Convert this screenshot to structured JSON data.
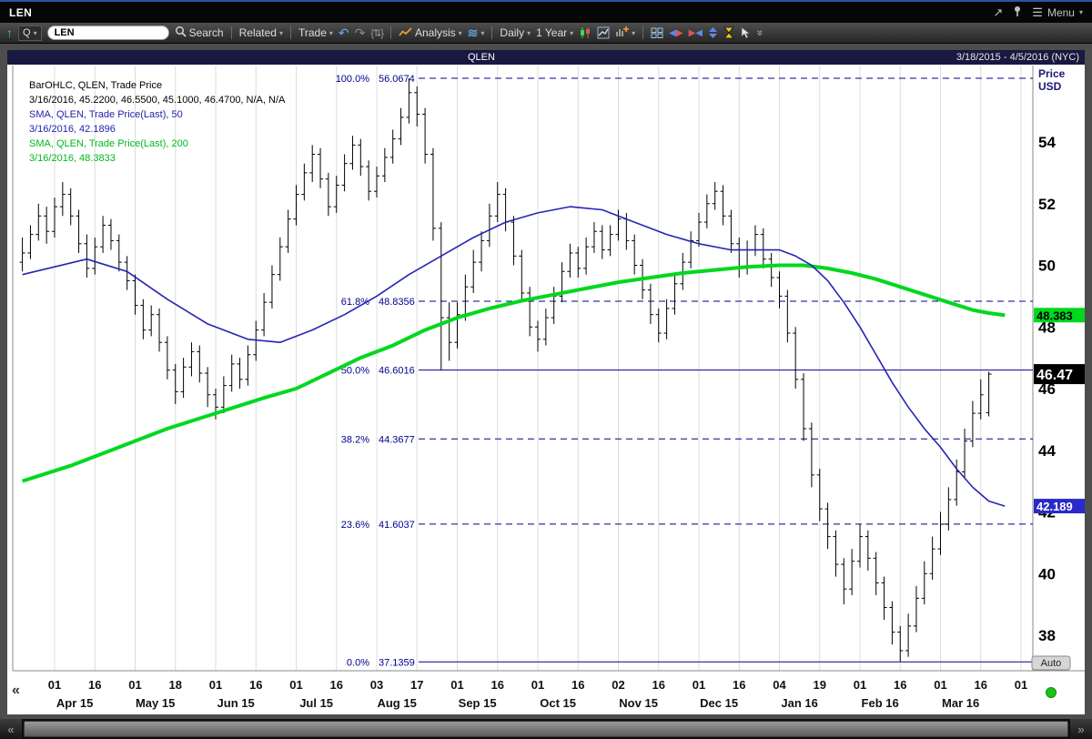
{
  "titlebar": {
    "title": "LEN",
    "menu_label": "Menu"
  },
  "toolbar": {
    "symbol_prefix": "Q",
    "symbol_value": "LEN",
    "search_label": "Search",
    "related_label": "Related",
    "trade_label": "Trade",
    "analysis_label": "Analysis",
    "period_label": "Daily",
    "range_label": "1 Year"
  },
  "chart_header": {
    "symbol": "QLEN",
    "range": "3/18/2015 - 4/5/2016 (NYC)"
  },
  "legend": {
    "lines": [
      {
        "text": "BarOHLC, QLEN, Trade Price"
      },
      {
        "text": "3/16/2016, 45.2200, 46.5500, 45.1000, 46.4700, N/A, N/A"
      },
      {
        "text": "SMA, QLEN, Trade Price(Last),  50"
      },
      {
        "text": "3/16/2016, 42.1896"
      },
      {
        "text": "SMA, QLEN, Trade Price(Last),  200"
      },
      {
        "text": "3/16/2016, 48.3833"
      }
    ]
  },
  "price_axis": {
    "title": [
      "Price",
      "USD"
    ],
    "ticks": [
      54,
      52,
      50,
      48,
      46,
      44,
      42,
      40,
      38
    ],
    "auto_label": "Auto"
  },
  "x_axis": {
    "day_ticks": [
      "01",
      "16",
      "01",
      "18",
      "01",
      "16",
      "01",
      "16",
      "03",
      "17",
      "01",
      "16",
      "01",
      "16",
      "02",
      "16",
      "01",
      "16",
      "04",
      "19",
      "01",
      "16",
      "01",
      "16",
      "01"
    ],
    "month_labels": [
      "Apr 15",
      "May 15",
      "Jun 15",
      "Jul 15",
      "Aug 15",
      "Sep 15",
      "Oct 15",
      "Nov 15",
      "Dec 15",
      "Jan 16",
      "Feb 16",
      "Mar 16"
    ],
    "collapse_glyph": "«"
  },
  "price_flags": [
    {
      "label": "48.383",
      "price": 48.3833,
      "bg": "#00d81e",
      "fg": "#000000",
      "emphasis": false
    },
    {
      "label": "42.189",
      "price": 42.1896,
      "bg": "#2a2ac8",
      "fg": "#ffffff",
      "emphasis": false
    },
    {
      "label": "46.47",
      "price": 46.47,
      "bg": "#000000",
      "fg": "#ffffff",
      "emphasis": true
    }
  ],
  "chart_data": {
    "type": "bar",
    "subtype": "ohlc",
    "symbol": "QLEN",
    "ylim": [
      36.8,
      56.5
    ],
    "last_bar": {
      "date": "3/16/2016",
      "open": 45.22,
      "high": 46.55,
      "low": 45.1,
      "close": 46.47
    },
    "bars_ohlc": [
      [
        50.1,
        50.9,
        49.8,
        50.4
      ],
      [
        50.4,
        51.3,
        50.2,
        51.0
      ],
      [
        51.0,
        52.0,
        50.8,
        51.6
      ],
      [
        51.6,
        51.9,
        50.7,
        51.1
      ],
      [
        51.1,
        52.2,
        50.9,
        51.9
      ],
      [
        51.9,
        52.7,
        51.6,
        52.3
      ],
      [
        52.3,
        52.5,
        51.3,
        51.6
      ],
      [
        51.6,
        51.8,
        50.4,
        50.7
      ],
      [
        50.7,
        51.0,
        49.6,
        49.9
      ],
      [
        49.9,
        50.9,
        49.7,
        50.6
      ],
      [
        50.6,
        51.6,
        50.4,
        51.3
      ],
      [
        51.3,
        51.5,
        50.5,
        50.8
      ],
      [
        50.8,
        51.0,
        49.8,
        50.1
      ],
      [
        50.1,
        50.3,
        49.2,
        49.5
      ],
      [
        49.5,
        49.7,
        48.4,
        48.7
      ],
      [
        48.7,
        48.9,
        47.6,
        47.9
      ],
      [
        47.9,
        48.7,
        47.7,
        48.4
      ],
      [
        48.4,
        48.6,
        47.2,
        47.5
      ],
      [
        47.5,
        47.7,
        46.3,
        46.6
      ],
      [
        46.6,
        46.8,
        45.5,
        45.9
      ],
      [
        45.9,
        47.0,
        45.7,
        46.7
      ],
      [
        46.7,
        47.5,
        46.4,
        47.2
      ],
      [
        47.2,
        47.4,
        46.2,
        46.5
      ],
      [
        46.5,
        46.7,
        45.4,
        45.8
      ],
      [
        45.8,
        46.0,
        45.0,
        45.4
      ],
      [
        45.4,
        46.4,
        45.2,
        46.1
      ],
      [
        46.1,
        47.1,
        45.9,
        46.8
      ],
      [
        46.8,
        47.0,
        46.0,
        46.3
      ],
      [
        46.3,
        47.4,
        46.1,
        47.1
      ],
      [
        47.1,
        48.2,
        46.9,
        47.9
      ],
      [
        47.9,
        49.1,
        47.7,
        48.8
      ],
      [
        48.8,
        50.0,
        48.6,
        49.7
      ],
      [
        49.7,
        50.9,
        49.5,
        50.6
      ],
      [
        50.6,
        51.8,
        50.4,
        51.5
      ],
      [
        51.5,
        52.6,
        51.3,
        52.3
      ],
      [
        52.3,
        53.3,
        52.1,
        53.0
      ],
      [
        53.0,
        53.9,
        52.7,
        53.6
      ],
      [
        53.6,
        53.8,
        52.5,
        52.8
      ],
      [
        52.8,
        53.0,
        51.6,
        51.9
      ],
      [
        51.9,
        52.9,
        51.7,
        52.6
      ],
      [
        52.6,
        53.6,
        52.4,
        53.3
      ],
      [
        53.3,
        54.2,
        53.1,
        53.9
      ],
      [
        53.9,
        54.1,
        52.9,
        53.2
      ],
      [
        53.2,
        53.4,
        52.1,
        52.4
      ],
      [
        52.4,
        53.2,
        52.2,
        52.9
      ],
      [
        52.9,
        53.8,
        52.7,
        53.5
      ],
      [
        53.5,
        54.4,
        53.3,
        54.1
      ],
      [
        54.1,
        55.1,
        53.9,
        54.8
      ],
      [
        54.8,
        56.07,
        54.6,
        55.6
      ],
      [
        55.6,
        55.8,
        54.5,
        54.9
      ],
      [
        54.9,
        55.1,
        53.3,
        53.6
      ],
      [
        53.6,
        53.8,
        50.8,
        51.2
      ],
      [
        51.2,
        51.4,
        46.6,
        48.3
      ],
      [
        48.3,
        48.8,
        46.9,
        47.5
      ],
      [
        47.5,
        48.8,
        47.3,
        48.4
      ],
      [
        48.4,
        49.7,
        48.2,
        49.3
      ],
      [
        49.3,
        50.5,
        49.1,
        50.1
      ],
      [
        50.1,
        51.1,
        49.8,
        50.8
      ],
      [
        50.8,
        52.0,
        50.6,
        51.6
      ],
      [
        51.6,
        52.7,
        51.4,
        52.3
      ],
      [
        52.3,
        52.5,
        51.1,
        51.4
      ],
      [
        51.4,
        51.6,
        50.0,
        50.3
      ],
      [
        50.3,
        50.5,
        48.8,
        49.1
      ],
      [
        49.1,
        49.3,
        47.7,
        48.0
      ],
      [
        48.0,
        48.2,
        47.2,
        47.6
      ],
      [
        47.6,
        48.6,
        47.4,
        48.3
      ],
      [
        48.3,
        49.3,
        48.1,
        49.0
      ],
      [
        49.0,
        50.1,
        48.8,
        49.8
      ],
      [
        49.8,
        50.7,
        49.6,
        50.4
      ],
      [
        50.4,
        50.6,
        49.6,
        49.9
      ],
      [
        49.9,
        50.9,
        49.7,
        50.6
      ],
      [
        50.6,
        51.4,
        50.4,
        51.1
      ],
      [
        51.1,
        51.3,
        50.2,
        50.5
      ],
      [
        50.5,
        51.3,
        50.3,
        51.0
      ],
      [
        51.0,
        51.8,
        50.8,
        51.5
      ],
      [
        51.5,
        51.7,
        50.5,
        50.8
      ],
      [
        50.8,
        51.0,
        49.7,
        50.0
      ],
      [
        50.0,
        50.2,
        48.9,
        49.2
      ],
      [
        49.2,
        49.4,
        48.1,
        48.4
      ],
      [
        48.4,
        48.6,
        47.5,
        47.8
      ],
      [
        47.8,
        48.9,
        47.6,
        48.6
      ],
      [
        48.6,
        49.7,
        48.4,
        49.4
      ],
      [
        49.4,
        50.4,
        49.2,
        50.1
      ],
      [
        50.1,
        51.1,
        49.9,
        50.8
      ],
      [
        50.8,
        51.7,
        50.6,
        51.4
      ],
      [
        51.4,
        52.3,
        51.2,
        52.0
      ],
      [
        52.0,
        52.7,
        51.8,
        52.4
      ],
      [
        52.4,
        52.6,
        51.3,
        51.6
      ],
      [
        51.6,
        51.8,
        50.4,
        50.7
      ],
      [
        50.7,
        50.9,
        49.6,
        49.9
      ],
      [
        49.9,
        50.8,
        49.7,
        50.5
      ],
      [
        50.5,
        51.3,
        50.3,
        51.0
      ],
      [
        51.0,
        51.2,
        49.9,
        50.2
      ],
      [
        50.2,
        50.4,
        49.3,
        49.6
      ],
      [
        49.6,
        49.8,
        48.6,
        49.0
      ],
      [
        49.0,
        49.2,
        47.5,
        47.8
      ],
      [
        47.8,
        48.0,
        46.0,
        46.3
      ],
      [
        46.3,
        46.5,
        44.3,
        44.7
      ],
      [
        44.7,
        44.9,
        42.8,
        43.2
      ],
      [
        43.2,
        43.4,
        41.7,
        42.1
      ],
      [
        42.1,
        42.3,
        40.8,
        41.2
      ],
      [
        41.2,
        41.4,
        39.9,
        40.3
      ],
      [
        40.3,
        40.5,
        39.0,
        39.5
      ],
      [
        39.5,
        40.8,
        39.3,
        40.4
      ],
      [
        40.4,
        41.6,
        40.2,
        41.2
      ],
      [
        41.2,
        41.4,
        40.1,
        40.5
      ],
      [
        40.5,
        40.7,
        39.3,
        39.7
      ],
      [
        39.7,
        39.9,
        38.5,
        38.9
      ],
      [
        38.9,
        39.1,
        37.7,
        38.1
      ],
      [
        38.1,
        38.3,
        37.15,
        37.5
      ],
      [
        37.5,
        38.7,
        37.3,
        38.3
      ],
      [
        38.3,
        39.6,
        38.1,
        39.2
      ],
      [
        39.2,
        40.4,
        39.0,
        40.0
      ],
      [
        40.0,
        41.2,
        39.8,
        40.8
      ],
      [
        40.8,
        42.0,
        40.6,
        41.6
      ],
      [
        41.6,
        42.8,
        41.4,
        42.4
      ],
      [
        42.4,
        43.7,
        42.2,
        43.3
      ],
      [
        43.3,
        44.7,
        43.1,
        44.3
      ],
      [
        44.3,
        45.6,
        44.1,
        45.2
      ],
      [
        45.2,
        46.3,
        45.0,
        45.8
      ],
      [
        45.22,
        46.55,
        45.1,
        46.47
      ]
    ],
    "series": [
      {
        "name": "SMA 50",
        "color": "#2525b4",
        "width": 1.6,
        "last": 42.1896,
        "points": [
          [
            0,
            49.7
          ],
          [
            8,
            50.2
          ],
          [
            13,
            49.8
          ],
          [
            18,
            48.9
          ],
          [
            23,
            48.1
          ],
          [
            28,
            47.6
          ],
          [
            32,
            47.5
          ],
          [
            36,
            47.9
          ],
          [
            40,
            48.4
          ],
          [
            44,
            49.0
          ],
          [
            48,
            49.7
          ],
          [
            52,
            50.3
          ],
          [
            56,
            50.9
          ],
          [
            60,
            51.4
          ],
          [
            64,
            51.7
          ],
          [
            68,
            51.9
          ],
          [
            72,
            51.8
          ],
          [
            76,
            51.4
          ],
          [
            80,
            51.0
          ],
          [
            84,
            50.7
          ],
          [
            88,
            50.5
          ],
          [
            92,
            50.5
          ],
          [
            94,
            50.5
          ],
          [
            96,
            50.3
          ],
          [
            98,
            50.0
          ],
          [
            100,
            49.5
          ],
          [
            102,
            48.8
          ],
          [
            104,
            48.0
          ],
          [
            106,
            47.1
          ],
          [
            108,
            46.2
          ],
          [
            110,
            45.4
          ],
          [
            112,
            44.7
          ],
          [
            114,
            44.1
          ],
          [
            116,
            43.4
          ],
          [
            118,
            42.8
          ],
          [
            120,
            42.35
          ],
          [
            122,
            42.19
          ]
        ]
      },
      {
        "name": "SMA 200",
        "color": "#00d81e",
        "width": 4,
        "last": 48.3833,
        "points": [
          [
            0,
            43.0
          ],
          [
            6,
            43.5
          ],
          [
            12,
            44.1
          ],
          [
            18,
            44.7
          ],
          [
            24,
            45.2
          ],
          [
            30,
            45.7
          ],
          [
            34,
            46.0
          ],
          [
            38,
            46.5
          ],
          [
            42,
            47.0
          ],
          [
            46,
            47.4
          ],
          [
            50,
            47.9
          ],
          [
            54,
            48.3
          ],
          [
            58,
            48.6
          ],
          [
            62,
            48.85
          ],
          [
            66,
            49.05
          ],
          [
            70,
            49.25
          ],
          [
            74,
            49.45
          ],
          [
            78,
            49.6
          ],
          [
            82,
            49.75
          ],
          [
            86,
            49.85
          ],
          [
            90,
            49.95
          ],
          [
            94,
            50.0
          ],
          [
            97,
            50.0
          ],
          [
            100,
            49.9
          ],
          [
            103,
            49.75
          ],
          [
            106,
            49.55
          ],
          [
            109,
            49.3
          ],
          [
            112,
            49.05
          ],
          [
            115,
            48.8
          ],
          [
            118,
            48.55
          ],
          [
            120,
            48.45
          ],
          [
            122,
            48.38
          ]
        ]
      }
    ],
    "fib_levels": [
      {
        "pct": "100.0%",
        "price": 56.0674,
        "dashed": true
      },
      {
        "pct": "61.8%",
        "price": 48.8356,
        "dashed": true
      },
      {
        "pct": "50.0%",
        "price": 46.6016,
        "dashed": false
      },
      {
        "pct": "38.2%",
        "price": 44.3677,
        "dashed": true
      },
      {
        "pct": "23.6%",
        "price": 41.6037,
        "dashed": true
      },
      {
        "pct": "0.0%",
        "price": 37.1359,
        "dashed": false
      }
    ]
  }
}
